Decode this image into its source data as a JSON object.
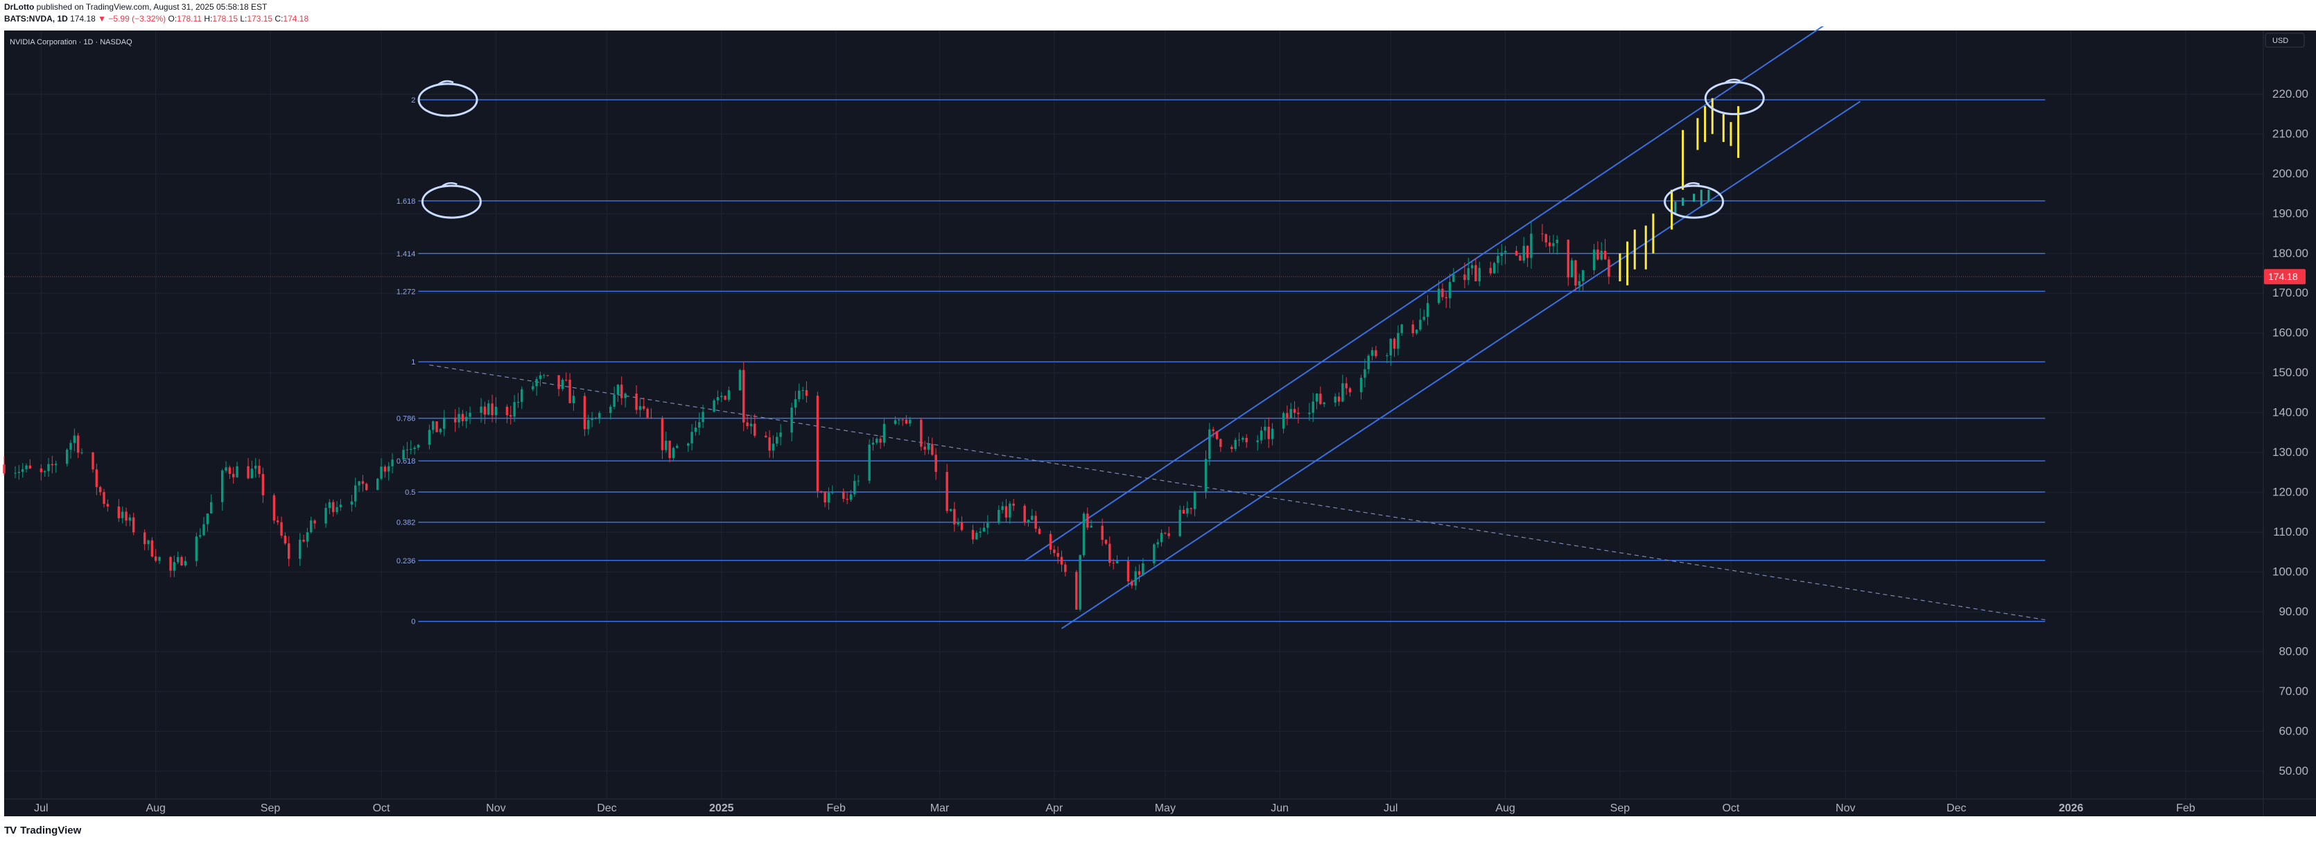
{
  "header": {
    "author": "DrLotto",
    "published": "published on TradingView.com, August 31, 2025 05:58:18 EST",
    "symbol": "BATS:NVDA, 1D",
    "last": "174.18",
    "change": "−5.99 (−3.32%)",
    "o_label": "O:",
    "o_value": "178.11",
    "h_label": "H:",
    "h_value": "178.15",
    "l_label": "L:",
    "l_value": "173.15",
    "c_label": "C:",
    "c_value": "174.18"
  },
  "footer": {
    "brand": "TradingView",
    "logo_icon": "tradingview-logo-icon"
  },
  "colors": {
    "background": "#131722",
    "grid": "#1f2432",
    "up": "#089981",
    "down": "#f23645",
    "fib": "#3c6fe0",
    "channel": "#3c6fe0",
    "yellow": "#ffeb3b",
    "annotation": "#c9dbff",
    "axis_text": "#b2b5be"
  },
  "chart_data": {
    "type": "candlestick",
    "title": "NVIDIA Corporation · 1D · NASDAQ",
    "currency": "USD",
    "last_price": 174.18,
    "last_price_label": "174.18",
    "ylim": [
      43,
      236
    ],
    "y_ticks": [
      50,
      60,
      70,
      80,
      90,
      100,
      110,
      120,
      130,
      140,
      150,
      160,
      170,
      180,
      190,
      200,
      210,
      220
    ],
    "y_tick_labels": [
      "50.00",
      "60.00",
      "70.00",
      "80.00",
      "90.00",
      "100.00",
      "110.00",
      "120.00",
      "130.00",
      "140.00",
      "150.00",
      "160.00",
      "170.00",
      "180.00",
      "190.00",
      "200.00",
      "210.00",
      "220.00"
    ],
    "x_range": [
      "2024-06-21",
      "2026-02-22"
    ],
    "x_ticks": [
      {
        "label": "Jul",
        "date": "2024-07-01"
      },
      {
        "label": "Aug",
        "date": "2024-08-01"
      },
      {
        "label": "Sep",
        "date": "2024-09-01"
      },
      {
        "label": "Oct",
        "date": "2024-10-01"
      },
      {
        "label": "Nov",
        "date": "2024-11-01"
      },
      {
        "label": "Dec",
        "date": "2024-12-01"
      },
      {
        "label": "2025",
        "date": "2025-01-01",
        "bold": true
      },
      {
        "label": "Feb",
        "date": "2025-02-01"
      },
      {
        "label": "Mar",
        "date": "2025-03-01"
      },
      {
        "label": "Apr",
        "date": "2025-04-01"
      },
      {
        "label": "May",
        "date": "2025-05-01"
      },
      {
        "label": "Jun",
        "date": "2025-06-01"
      },
      {
        "label": "Jul",
        "date": "2025-07-01"
      },
      {
        "label": "Aug",
        "date": "2025-08-01"
      },
      {
        "label": "Sep",
        "date": "2025-09-01"
      },
      {
        "label": "Oct",
        "date": "2025-10-01"
      },
      {
        "label": "Nov",
        "date": "2025-11-01"
      },
      {
        "label": "Dec",
        "date": "2025-12-01"
      },
      {
        "label": "2026",
        "date": "2026-01-01",
        "bold": true
      },
      {
        "label": "Feb",
        "date": "2026-02-01"
      }
    ],
    "close_path": [
      [
        "2024-06-21",
        127
      ],
      [
        "2024-07-02",
        124
      ],
      [
        "2024-07-10",
        134
      ],
      [
        "2024-07-18",
        118
      ],
      [
        "2024-07-25",
        112
      ],
      [
        "2024-08-05",
        100
      ],
      [
        "2024-08-12",
        108
      ],
      [
        "2024-08-20",
        126
      ],
      [
        "2024-08-28",
        125
      ],
      [
        "2024-09-06",
        104
      ],
      [
        "2024-09-16",
        116
      ],
      [
        "2024-09-24",
        120
      ],
      [
        "2024-10-08",
        132
      ],
      [
        "2024-10-16",
        136
      ],
      [
        "2024-10-24",
        139
      ],
      [
        "2024-11-05",
        141
      ],
      [
        "2024-11-12",
        148
      ],
      [
        "2024-11-20",
        146
      ],
      [
        "2024-11-26",
        136
      ],
      [
        "2024-12-04",
        145
      ],
      [
        "2024-12-11",
        139
      ],
      [
        "2024-12-18",
        130
      ],
      [
        "2024-12-27",
        138
      ],
      [
        "2025-01-06",
        150
      ],
      [
        "2025-01-07",
        140
      ],
      [
        "2025-01-14",
        132
      ],
      [
        "2025-01-24",
        146
      ],
      [
        "2025-01-27",
        119
      ],
      [
        "2025-02-04",
        118
      ],
      [
        "2025-02-11",
        132
      ],
      [
        "2025-02-18",
        140
      ],
      [
        "2025-02-26",
        131
      ],
      [
        "2025-03-03",
        115
      ],
      [
        "2025-03-10",
        107
      ],
      [
        "2025-03-18",
        116
      ],
      [
        "2025-03-26",
        113
      ],
      [
        "2025-04-03",
        102
      ],
      [
        "2025-04-07",
        92
      ],
      [
        "2025-04-09",
        114
      ],
      [
        "2025-04-16",
        104
      ],
      [
        "2025-04-22",
        98
      ],
      [
        "2025-04-30",
        108
      ],
      [
        "2025-05-08",
        117
      ],
      [
        "2025-05-13",
        134
      ],
      [
        "2025-05-22",
        132
      ],
      [
        "2025-05-30",
        135
      ],
      [
        "2025-06-06",
        142
      ],
      [
        "2025-06-13",
        143
      ],
      [
        "2025-06-20",
        147
      ],
      [
        "2025-06-25",
        154
      ],
      [
        "2025-07-03",
        159
      ],
      [
        "2025-07-10",
        164
      ],
      [
        "2025-07-17",
        172
      ],
      [
        "2025-07-24",
        176
      ],
      [
        "2025-07-31",
        178
      ],
      [
        "2025-08-07",
        182
      ],
      [
        "2025-08-15",
        182
      ],
      [
        "2025-08-21",
        172
      ],
      [
        "2025-08-27",
        182
      ],
      [
        "2025-08-29",
        174.18
      ]
    ],
    "projection_yellow": [
      {
        "date": "2025-09-01",
        "open": 173,
        "close": 180
      },
      {
        "date": "2025-09-03",
        "open": 172,
        "close": 183
      },
      {
        "date": "2025-09-05",
        "open": 176,
        "close": 186
      },
      {
        "date": "2025-09-08",
        "open": 176,
        "close": 187
      },
      {
        "date": "2025-09-10",
        "open": 180,
        "close": 190
      },
      {
        "date": "2025-09-15",
        "open": 186,
        "close": 196
      },
      {
        "date": "2025-09-18",
        "open": 196,
        "close": 211
      },
      {
        "date": "2025-09-22",
        "open": 206,
        "close": 214
      },
      {
        "date": "2025-09-24",
        "open": 208,
        "close": 217
      },
      {
        "date": "2025-09-26",
        "open": 210,
        "close": 219
      },
      {
        "date": "2025-09-29",
        "open": 208,
        "close": 215
      },
      {
        "date": "2025-10-01",
        "open": 207,
        "close": 213
      },
      {
        "date": "2025-10-03",
        "open": 204,
        "close": 217
      }
    ],
    "projection_green": [
      {
        "date": "2025-09-16",
        "open": 190,
        "close": 193
      },
      {
        "date": "2025-09-18",
        "open": 192,
        "close": 194
      },
      {
        "date": "2025-09-21",
        "open": 193,
        "close": 195
      },
      {
        "date": "2025-09-23",
        "open": 192,
        "close": 196
      },
      {
        "date": "2025-09-25",
        "open": 193,
        "close": 196
      }
    ],
    "fib_levels": [
      {
        "label": "0",
        "value": 87.6
      },
      {
        "label": "0.236",
        "value": 102.9
      },
      {
        "label": "0.382",
        "value": 112.5
      },
      {
        "label": "0.5",
        "value": 120.1
      },
      {
        "label": "0.618",
        "value": 127.9
      },
      {
        "label": "0.786",
        "value": 138.6
      },
      {
        "label": "1",
        "value": 152.8
      },
      {
        "label": "1.272",
        "value": 170.5
      },
      {
        "label": "1.414",
        "value": 180.0
      },
      {
        "label": "1.618",
        "value": 193.2
      },
      {
        "label": "2",
        "value": 218.6
      }
    ],
    "fib_range": [
      "2024-10-11",
      "2025-12-25"
    ],
    "channel_upper": [
      [
        "2025-03-24",
        102.8
      ],
      [
        "2025-10-28",
        238.4
      ]
    ],
    "channel_lower": [
      [
        "2025-04-03",
        85.8
      ],
      [
        "2025-11-05",
        218.2
      ]
    ],
    "trendline": [
      [
        "2024-10-14",
        152.0
      ],
      [
        "2025-12-25",
        88.0
      ]
    ],
    "annotations": [
      {
        "type": "circle",
        "label": "2",
        "date": "2024-10-19",
        "value": 218.6
      },
      {
        "type": "circle",
        "label": "1.618",
        "date": "2024-10-20",
        "value": 193.0
      },
      {
        "type": "circle",
        "label": "",
        "date": "2025-10-02",
        "value": 219.0
      },
      {
        "type": "circle",
        "label": "",
        "date": "2025-09-21",
        "value": 193.0
      }
    ]
  }
}
